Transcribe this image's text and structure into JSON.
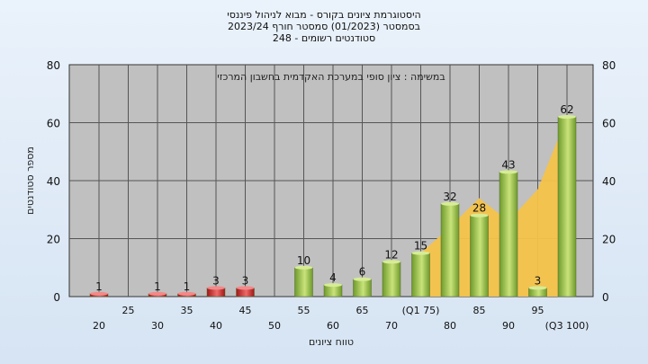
{
  "header": {
    "title_line1": "היסטוגרמת ציונים בקורס - מבוא לניהול פיננסי",
    "title_line2": "בסמסטר (01/2023) סמסטר חורף 2023/24",
    "title_line3": "סטודנטים רשומים - 248"
  },
  "chart_data": {
    "type": "bar",
    "annotation": "במשימה : ציון סופי במערכת האקדמית בחשבון המרכזי",
    "xlabel": "טווח ציונים",
    "ylabel": "מספר סטודנטים",
    "ylim": [
      0,
      80
    ],
    "yticks": [
      0,
      20,
      40,
      60,
      80
    ],
    "grid": true,
    "categories_top": [
      "25",
      "35",
      "45",
      "55",
      "65",
      "(Q1 75)",
      "85",
      "95"
    ],
    "categories_bottom": [
      "20",
      "30",
      "40",
      "50",
      "60",
      "70",
      "80",
      "90",
      "(Q3 100)"
    ],
    "bars": [
      {
        "bin": 20,
        "value": 1,
        "label": "1",
        "color": "#d42a2a"
      },
      {
        "bin": 30,
        "value": 1,
        "label": "1",
        "color": "#d42a2a"
      },
      {
        "bin": 35,
        "value": 1,
        "label": "1",
        "color": "#d42a2a"
      },
      {
        "bin": 40,
        "value": 3,
        "label": "3",
        "color": "#d42a2a"
      },
      {
        "bin": 45,
        "value": 3,
        "label": "3",
        "color": "#d42a2a"
      },
      {
        "bin": 55,
        "value": 10,
        "label": "10",
        "color": "#8fbf3a"
      },
      {
        "bin": 60,
        "value": 4,
        "label": "4",
        "color": "#8fbf3a"
      },
      {
        "bin": 65,
        "value": 6,
        "label": "6",
        "color": "#8fbf3a"
      },
      {
        "bin": 70,
        "value": 12,
        "label": "12",
        "color": "#8fbf3a"
      },
      {
        "bin": 75,
        "value": 15,
        "label": "15",
        "color": "#8fbf3a"
      },
      {
        "bin": 80,
        "value": 32,
        "label": "32",
        "color": "#8fbf3a"
      },
      {
        "bin": 85,
        "value": 28,
        "label": "28",
        "color": "#8fbf3a"
      },
      {
        "bin": 90,
        "value": 43,
        "label": "43",
        "color": "#8fbf3a"
      },
      {
        "bin": 95,
        "value": 3,
        "label": "3",
        "color": "#8fbf3a"
      },
      {
        "bin": 100,
        "value": 62,
        "label": "62",
        "color": "#8fbf3a"
      }
    ],
    "area": {
      "color": "#f5c34a",
      "points": [
        [
          75,
          15
        ],
        [
          80,
          24
        ],
        [
          85,
          34
        ],
        [
          90,
          26
        ],
        [
          95,
          37
        ],
        [
          100,
          62
        ]
      ]
    }
  }
}
